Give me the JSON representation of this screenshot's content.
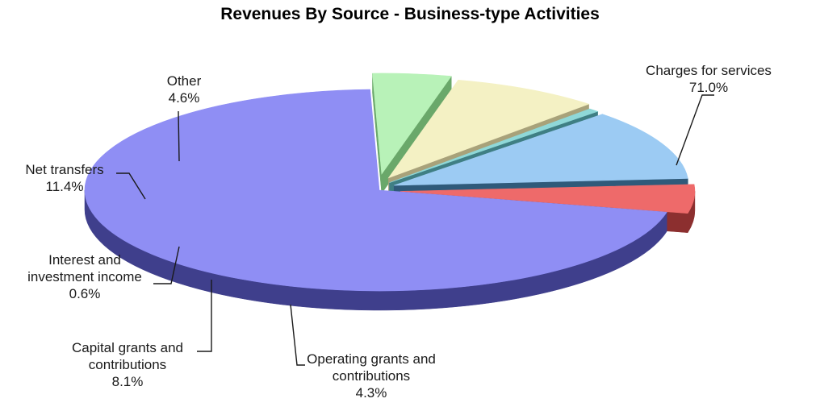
{
  "chart_data": {
    "type": "pie",
    "title": "Revenues By Source - Business-type Activities",
    "three_d": true,
    "exploded": true,
    "legend": "none",
    "slices": [
      {
        "label_lines": [
          "Charges for services",
          "71.0%"
        ],
        "name": "Charges for services",
        "value": 71.0,
        "color": "#8f8ef4",
        "side_color": "#3f3f8c"
      },
      {
        "label_lines": [
          "Operating grants and",
          "contributions",
          "4.3%"
        ],
        "name": "Operating grants and contributions",
        "value": 4.3,
        "color": "#b8f2b8",
        "side_color": "#6aa86a"
      },
      {
        "label_lines": [
          "Capital grants and",
          "contributions",
          "8.1%"
        ],
        "name": "Capital grants and contributions",
        "value": 8.1,
        "color": "#f4f1c4",
        "side_color": "#a8a27a"
      },
      {
        "label_lines": [
          "Interest and",
          "investment income",
          "0.6%"
        ],
        "name": "Interest and investment income",
        "value": 0.6,
        "color": "#8fd8d8",
        "side_color": "#3f7f84"
      },
      {
        "label_lines": [
          "Net transfers",
          "11.4%"
        ],
        "name": "Net transfers",
        "value": 11.4,
        "color": "#9ccbf3",
        "side_color": "#2f5a7a"
      },
      {
        "label_lines": [
          "Other",
          "4.6%"
        ],
        "name": "Other",
        "value": 4.6,
        "color": "#ee6a6a",
        "side_color": "#8c2f2f"
      }
    ]
  }
}
